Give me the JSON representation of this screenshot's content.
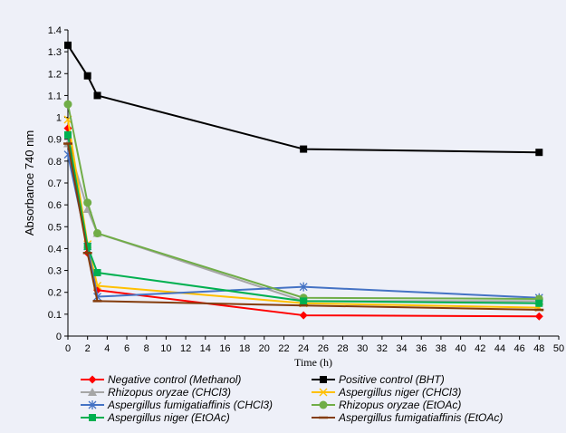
{
  "chart_data": {
    "type": "line",
    "title": "",
    "xlabel": "Time (h)",
    "ylabel": "Absorbance 740 nm",
    "xlim": [
      0,
      50
    ],
    "ylim": [
      0,
      1.4
    ],
    "xticks": [
      0,
      2,
      4,
      6,
      8,
      10,
      12,
      14,
      16,
      18,
      20,
      22,
      24,
      26,
      28,
      30,
      32,
      34,
      36,
      38,
      40,
      42,
      44,
      46,
      48,
      50
    ],
    "yticks": [
      0,
      0.1,
      0.2,
      0.3,
      0.4,
      0.5,
      0.6,
      0.7,
      0.8,
      0.9,
      1,
      1.1,
      1.2,
      1.3,
      1.4
    ],
    "grid": false,
    "legend_position": "bottom",
    "series": [
      {
        "name": "Negative control (Methanol)",
        "color": "#ff0000",
        "marker": "diamond",
        "x": [
          0,
          2,
          3,
          24,
          48
        ],
        "y": [
          0.95,
          0.38,
          0.21,
          0.095,
          0.09
        ]
      },
      {
        "name": "Positive control (BHT)",
        "color": "#000000",
        "marker": "square",
        "x": [
          0,
          2,
          3,
          24,
          48
        ],
        "y": [
          1.33,
          1.19,
          1.1,
          0.855,
          0.84
        ]
      },
      {
        "name": "Rhizopus oryzae (CHCl3)",
        "color": "#a6a6a6",
        "marker": "triangle",
        "x": [
          0,
          2,
          3,
          24,
          48
        ],
        "y": [
          0.88,
          0.58,
          0.47,
          0.16,
          0.16
        ]
      },
      {
        "name": "Aspergillus niger (CHCl3)",
        "color": "#ffc000",
        "marker": "x",
        "x": [
          0,
          2,
          3,
          24,
          48
        ],
        "y": [
          0.99,
          0.42,
          0.23,
          0.15,
          0.13
        ]
      },
      {
        "name": "Aspergillus fumigatiaffinis (CHCl3)",
        "color": "#4472c4",
        "marker": "star",
        "x": [
          0,
          2,
          3,
          24,
          48
        ],
        "y": [
          0.83,
          0.41,
          0.18,
          0.225,
          0.175
        ]
      },
      {
        "name": "Rhizopus oryzae (EtOAc)",
        "color": "#70ad47",
        "marker": "circle",
        "x": [
          0,
          2,
          3,
          24,
          48
        ],
        "y": [
          1.06,
          0.61,
          0.47,
          0.175,
          0.17
        ]
      },
      {
        "name": "Aspergillus niger (EtOAc)",
        "color": "#00b050",
        "marker": "square",
        "x": [
          0,
          2,
          3,
          24,
          48
        ],
        "y": [
          0.92,
          0.41,
          0.29,
          0.16,
          0.15
        ]
      },
      {
        "name": "Aspergillus fumigatiaffinis (EtOAc)",
        "color": "#843c0c",
        "marker": "dash",
        "x": [
          0,
          2,
          3,
          24,
          48
        ],
        "y": [
          0.88,
          0.38,
          0.16,
          0.14,
          0.12
        ]
      }
    ]
  }
}
